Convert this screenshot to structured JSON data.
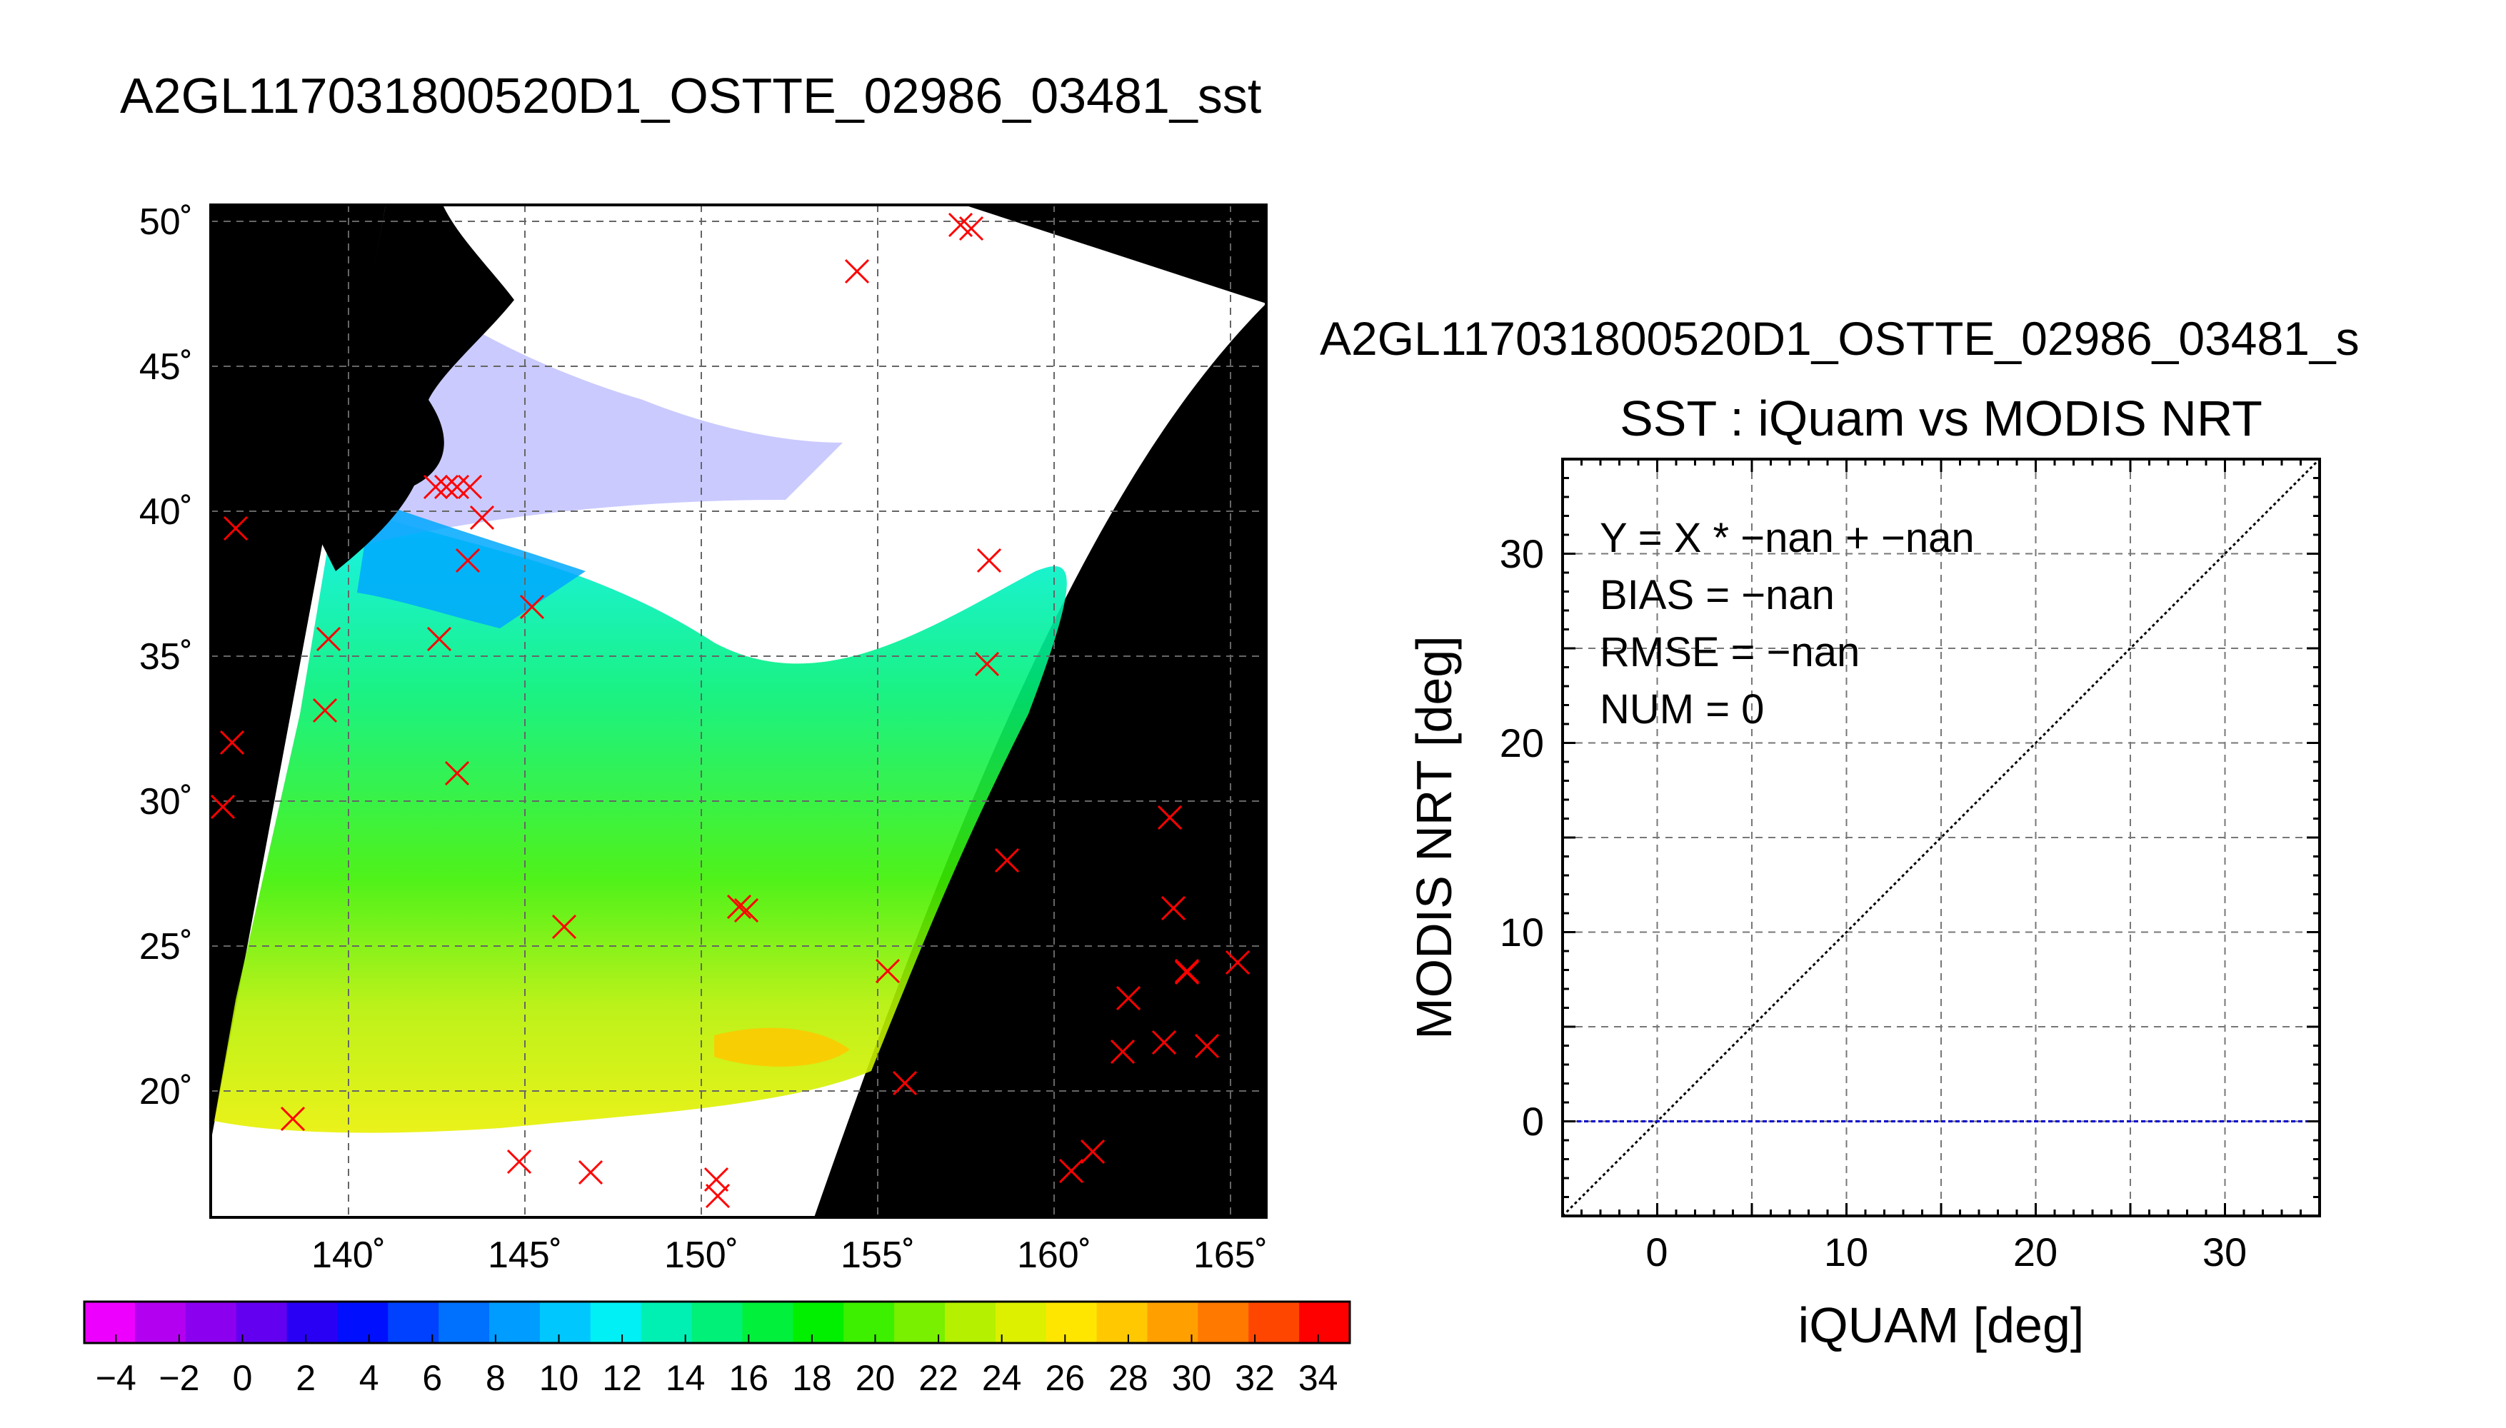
{
  "map_panel": {
    "title": "A2GL117031800520D1_OSTTE_02986_03481_sst",
    "lat_ticks": [
      "50˚",
      "45˚",
      "40˚",
      "35˚",
      "30˚",
      "25˚",
      "20˚"
    ],
    "lon_ticks": [
      "140˚",
      "145˚",
      "150˚",
      "155˚",
      "160˚",
      "165˚"
    ],
    "marker_color": "#ff0000",
    "land_color": "#000000",
    "no_data_color": "#ffffff",
    "marker_symbol": "x"
  },
  "colorbar": {
    "tick_labels": [
      "−4",
      "−2",
      "0",
      "2",
      "4",
      "6",
      "8",
      "10",
      "12",
      "14",
      "16",
      "18",
      "20",
      "22",
      "24",
      "26",
      "28",
      "30",
      "32",
      "34"
    ],
    "range": [
      -5,
      35
    ],
    "colors": [
      "#ee00ff",
      "#b400f0",
      "#8c00f0",
      "#6400f0",
      "#2a00f5",
      "#0010ff",
      "#0040ff",
      "#0070ff",
      "#009cff",
      "#00c8ff",
      "#00f0f5",
      "#00f0b4",
      "#00f078",
      "#00f03c",
      "#00f000",
      "#3cf000",
      "#78f000",
      "#b4f000",
      "#dcf000",
      "#ffe600",
      "#ffc800",
      "#ffa000",
      "#ff7800",
      "#ff4600",
      "#ff0000"
    ]
  },
  "chart_data": {
    "type": "scatter",
    "supertitle": "A2GL117031800520D1_OSTTE_02986_03481_s",
    "title": "SST : iQuam vs MODIS NRT",
    "xlabel": "iQUAM [deg]",
    "ylabel": "MODIS NRT [deg]",
    "xlim": [
      -5,
      35
    ],
    "ylim": [
      -5,
      35
    ],
    "x_ticks": [
      "0",
      "10",
      "20",
      "30"
    ],
    "y_ticks": [
      "0",
      "10",
      "20",
      "30"
    ],
    "grid": true,
    "stats": [
      "Y = X * −nan + −nan",
      "BIAS = −nan",
      "RMSE = −nan",
      "NUM = 0"
    ],
    "reference_lines": [
      {
        "type": "identity",
        "color": "#000000",
        "style": "dotted"
      },
      {
        "type": "fit",
        "y": 0,
        "color": "#0000cc",
        "style": "dashed"
      }
    ],
    "series": [
      {
        "x": [],
        "y": []
      }
    ]
  }
}
